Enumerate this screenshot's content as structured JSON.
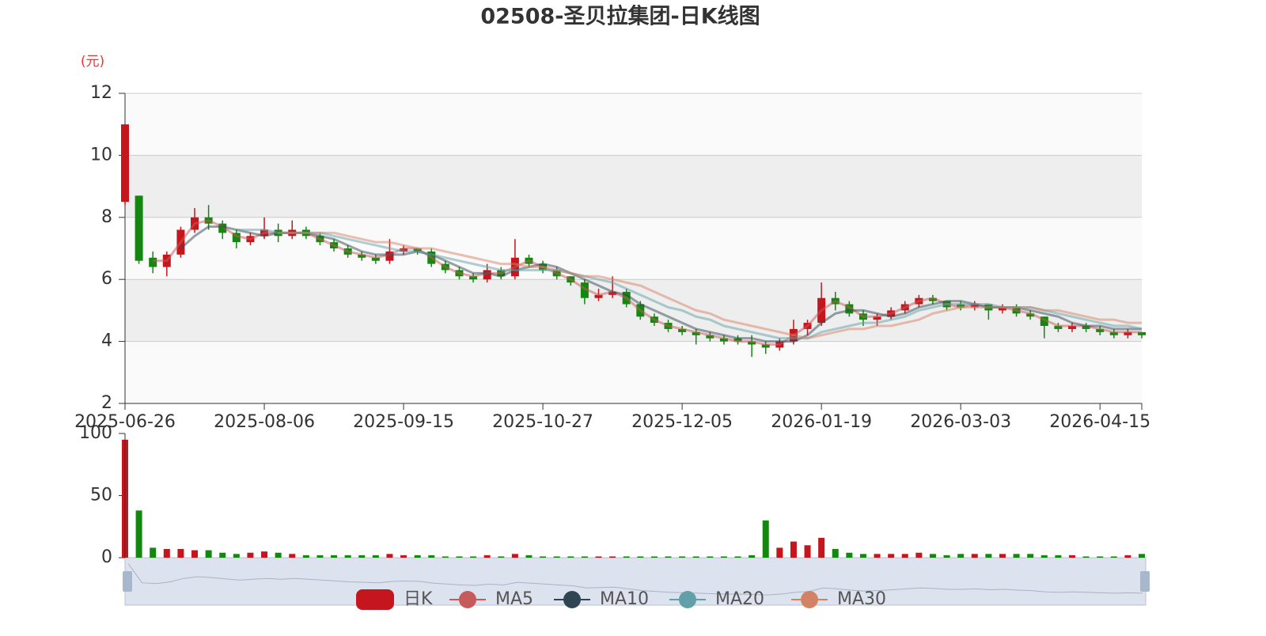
{
  "chart_data": [
    {
      "type": "candlestick",
      "title": "02508-圣贝拉集团-日K线图",
      "y_label": "(元)",
      "categories": [
        "2025-06-26",
        null,
        null,
        null,
        null,
        null,
        null,
        null,
        null,
        null,
        "2025-08-06",
        null,
        null,
        null,
        null,
        null,
        null,
        null,
        null,
        null,
        "2025-09-15",
        null,
        null,
        null,
        null,
        null,
        null,
        null,
        null,
        null,
        "2025-10-27",
        null,
        null,
        null,
        null,
        null,
        null,
        null,
        null,
        null,
        "2025-12-05",
        null,
        null,
        null,
        null,
        null,
        null,
        null,
        null,
        null,
        "2026-01-19",
        null,
        null,
        null,
        null,
        null,
        null,
        null,
        null,
        null,
        "2026-03-03",
        null,
        null,
        null,
        null,
        null,
        null,
        null,
        null,
        null,
        "2026-04-15",
        null,
        null,
        null
      ],
      "series": [
        {
          "name": "日K",
          "type": "candlestick",
          "color": "#c4161c",
          "down_color": "#13880e",
          "open": [
            8.5,
            8.7,
            6.7,
            6.4,
            6.8,
            7.6,
            8.0,
            7.8,
            7.5,
            7.2,
            7.4,
            7.6,
            7.4,
            7.6,
            7.4,
            7.2,
            7.0,
            6.8,
            6.7,
            6.6,
            6.9,
            7.0,
            6.9,
            6.5,
            6.3,
            6.1,
            6.0,
            6.3,
            6.1,
            6.7,
            6.5,
            6.3,
            6.1,
            5.9,
            5.4,
            5.5,
            5.6,
            5.2,
            4.8,
            4.6,
            4.4,
            4.3,
            4.2,
            4.1,
            4.1,
            4.0,
            3.9,
            3.8,
            4.0,
            4.4,
            4.6,
            5.4,
            5.2,
            4.9,
            4.7,
            4.8,
            5.0,
            5.2,
            5.4,
            5.3,
            5.2,
            5.1,
            5.2,
            5.0,
            5.1,
            4.9,
            4.8,
            4.5,
            4.4,
            4.5,
            4.4,
            4.3,
            4.2,
            4.3
          ],
          "close": [
            11.0,
            6.6,
            6.4,
            6.8,
            7.6,
            8.0,
            7.8,
            7.5,
            7.2,
            7.4,
            7.6,
            7.4,
            7.6,
            7.4,
            7.2,
            7.0,
            6.8,
            6.7,
            6.6,
            6.9,
            7.0,
            6.9,
            6.5,
            6.3,
            6.1,
            6.0,
            6.3,
            6.1,
            6.7,
            6.5,
            6.3,
            6.1,
            5.9,
            5.4,
            5.5,
            5.6,
            5.2,
            4.8,
            4.6,
            4.4,
            4.3,
            4.2,
            4.1,
            4.0,
            4.0,
            3.9,
            3.8,
            4.0,
            4.4,
            4.6,
            5.4,
            5.2,
            4.9,
            4.7,
            4.8,
            5.0,
            5.2,
            5.4,
            5.3,
            5.1,
            5.1,
            5.2,
            5.0,
            5.1,
            4.9,
            4.8,
            4.5,
            4.4,
            4.5,
            4.4,
            4.3,
            4.2,
            4.3,
            4.2
          ],
          "low": [
            8.4,
            6.5,
            6.2,
            6.1,
            6.7,
            7.5,
            7.6,
            7.3,
            7.0,
            7.1,
            7.3,
            7.2,
            7.3,
            7.3,
            7.1,
            6.9,
            6.7,
            6.6,
            6.5,
            6.5,
            6.8,
            6.8,
            6.4,
            6.2,
            6.0,
            5.9,
            5.9,
            6.0,
            6.0,
            6.4,
            6.2,
            6.0,
            5.8,
            5.2,
            5.3,
            5.4,
            5.1,
            4.7,
            4.5,
            4.3,
            4.2,
            3.9,
            4.0,
            3.9,
            3.9,
            3.5,
            3.6,
            3.7,
            3.9,
            4.2,
            4.5,
            5.0,
            4.8,
            4.5,
            4.5,
            4.7,
            4.9,
            5.1,
            5.2,
            5.0,
            5.0,
            5.0,
            4.7,
            4.9,
            4.8,
            4.7,
            4.1,
            4.3,
            4.3,
            4.3,
            4.2,
            4.1,
            4.1,
            4.1
          ],
          "high": [
            11.0,
            8.7,
            6.9,
            6.9,
            7.7,
            8.3,
            8.4,
            7.9,
            7.6,
            7.5,
            8.0,
            7.8,
            7.9,
            7.7,
            7.5,
            7.3,
            7.1,
            6.9,
            6.8,
            7.3,
            7.1,
            7.0,
            7.0,
            6.6,
            6.4,
            6.2,
            6.5,
            6.4,
            7.3,
            6.8,
            6.6,
            6.4,
            6.1,
            6.0,
            5.7,
            6.1,
            5.7,
            5.3,
            4.9,
            4.7,
            4.5,
            4.4,
            4.3,
            4.2,
            4.2,
            4.2,
            4.0,
            4.1,
            4.7,
            4.7,
            5.9,
            5.6,
            5.3,
            5.0,
            4.9,
            5.1,
            5.3,
            5.5,
            5.5,
            5.3,
            5.3,
            5.3,
            5.2,
            5.2,
            5.2,
            5.0,
            4.8,
            4.6,
            4.6,
            4.6,
            4.5,
            4.4,
            4.4,
            4.3
          ]
        },
        {
          "name": "MA5",
          "type": "line",
          "color": "#c75a5a",
          "values": [
            null,
            null,
            6.6,
            6.6,
            7.2,
            7.8,
            7.9,
            7.7,
            7.4,
            7.3,
            7.5,
            7.5,
            7.5,
            7.5,
            7.3,
            7.1,
            6.9,
            6.8,
            6.7,
            6.8,
            7.0,
            7.0,
            6.7,
            6.4,
            6.2,
            6.1,
            6.2,
            6.2,
            6.4,
            6.6,
            6.4,
            6.2,
            6.0,
            5.7,
            5.5,
            5.6,
            5.4,
            5.0,
            4.7,
            4.5,
            4.4,
            4.3,
            4.2,
            4.1,
            4.0,
            4.0,
            3.9,
            3.9,
            4.2,
            4.5,
            5.0,
            5.3,
            5.1,
            4.8,
            4.8,
            4.9,
            5.1,
            5.3,
            5.4,
            5.2,
            5.1,
            5.2,
            5.1,
            5.1,
            5.0,
            4.9,
            4.7,
            4.5,
            4.5,
            4.5,
            4.4,
            4.3,
            4.3,
            4.3
          ]
        },
        {
          "name": "MA10",
          "type": "line",
          "color": "#2f4554",
          "values": [
            null,
            null,
            null,
            null,
            7.0,
            7.4,
            7.7,
            7.7,
            7.6,
            7.5,
            7.4,
            7.5,
            7.5,
            7.5,
            7.4,
            7.3,
            7.1,
            6.9,
            6.8,
            6.8,
            6.8,
            6.9,
            6.8,
            6.6,
            6.4,
            6.2,
            6.2,
            6.1,
            6.3,
            6.4,
            6.5,
            6.4,
            6.2,
            6.0,
            5.8,
            5.6,
            5.5,
            5.2,
            5.0,
            4.8,
            4.6,
            4.4,
            4.3,
            4.2,
            4.1,
            4.1,
            4.0,
            4.0,
            4.0,
            4.2,
            4.6,
            4.9,
            5.0,
            5.0,
            4.9,
            4.8,
            4.9,
            5.1,
            5.2,
            5.3,
            5.3,
            5.2,
            5.1,
            5.1,
            5.1,
            5.0,
            4.9,
            4.8,
            4.6,
            4.5,
            4.5,
            4.4,
            4.4,
            4.4
          ]
        },
        {
          "name": "MA20",
          "type": "line",
          "color": "#61a0a8",
          "values": [
            null,
            null,
            null,
            null,
            null,
            null,
            null,
            null,
            7.6,
            7.6,
            7.6,
            7.5,
            7.5,
            7.5,
            7.5,
            7.4,
            7.3,
            7.2,
            7.1,
            7.0,
            6.9,
            6.9,
            6.8,
            6.7,
            6.6,
            6.5,
            6.4,
            6.3,
            6.3,
            6.3,
            6.3,
            6.3,
            6.2,
            6.1,
            6.0,
            5.9,
            5.7,
            5.5,
            5.3,
            5.1,
            5.0,
            4.8,
            4.7,
            4.5,
            4.4,
            4.3,
            4.2,
            4.1,
            4.1,
            4.1,
            4.3,
            4.4,
            4.5,
            4.6,
            4.6,
            4.7,
            4.8,
            5.0,
            5.1,
            5.2,
            5.2,
            5.2,
            5.2,
            5.1,
            5.1,
            5.1,
            5.0,
            4.9,
            4.8,
            4.7,
            4.6,
            4.5,
            4.5,
            4.4
          ]
        },
        {
          "name": "MA30",
          "type": "line",
          "color": "#d48265",
          "values": [
            null,
            null,
            null,
            null,
            null,
            null,
            null,
            null,
            null,
            null,
            null,
            7.5,
            7.5,
            7.5,
            7.5,
            7.5,
            7.4,
            7.3,
            7.2,
            7.2,
            7.1,
            7.0,
            7.0,
            6.9,
            6.8,
            6.7,
            6.6,
            6.5,
            6.5,
            6.4,
            6.4,
            6.3,
            6.2,
            6.1,
            6.1,
            6.0,
            5.9,
            5.8,
            5.6,
            5.4,
            5.2,
            5.0,
            4.9,
            4.7,
            4.6,
            4.5,
            4.4,
            4.3,
            4.2,
            4.1,
            4.2,
            4.3,
            4.4,
            4.4,
            4.5,
            4.5,
            4.6,
            4.7,
            4.9,
            5.0,
            5.1,
            5.1,
            5.1,
            5.1,
            5.1,
            5.1,
            5.0,
            5.0,
            4.9,
            4.8,
            4.7,
            4.7,
            4.6,
            4.6
          ]
        }
      ],
      "ylim": [
        2,
        12
      ],
      "yticks": [
        2,
        4,
        6,
        8,
        10,
        12
      ],
      "grid": true,
      "split_area_colors": [
        "#fafafa",
        "#eeeeee"
      ]
    },
    {
      "type": "bar",
      "values": [
        95,
        38,
        8,
        7,
        7,
        6,
        6,
        4,
        3,
        4,
        5,
        4,
        3,
        2,
        2,
        2,
        2,
        2,
        2,
        3,
        2,
        2,
        2,
        1,
        1,
        1,
        2,
        1,
        3,
        2,
        1,
        1,
        1,
        1,
        1,
        1,
        1,
        1,
        1,
        1,
        1,
        1,
        1,
        1,
        1,
        2,
        30,
        8,
        13,
        10,
        16,
        7,
        4,
        3,
        3,
        3,
        3,
        4,
        3,
        2,
        3,
        3,
        3,
        3,
        3,
        3,
        2,
        2,
        2,
        1,
        1,
        1,
        2,
        3
      ],
      "ylim": [
        0,
        100
      ],
      "yticks": [
        0,
        50,
        100
      ]
    }
  ]
}
